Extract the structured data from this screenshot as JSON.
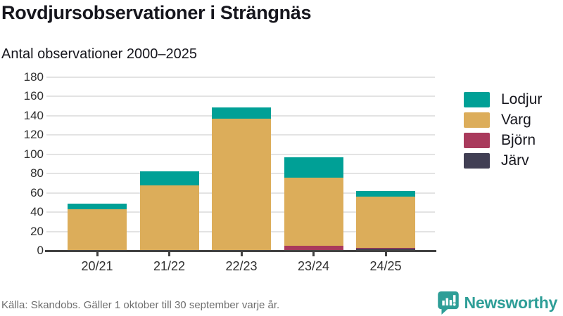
{
  "header": {
    "title": "Rovdjursobservationer i Strängnäs",
    "subtitle": "Antal observationer 2000–2025"
  },
  "chart_data": {
    "type": "bar",
    "stacked": true,
    "title": "Rovdjursobservationer i Strängnäs",
    "subtitle": "Antal observationer 2000–2025",
    "categories": [
      "20/21",
      "21/22",
      "22/23",
      "23/24",
      "24/25"
    ],
    "series": [
      {
        "name": "Järv",
        "color": "#413F54",
        "values": [
          0,
          0,
          0,
          0,
          2
        ]
      },
      {
        "name": "Björn",
        "color": "#A93A5C",
        "values": [
          0,
          1,
          0,
          5,
          1
        ]
      },
      {
        "name": "Varg",
        "color": "#DCAD5A",
        "values": [
          43,
          67,
          137,
          71,
          53
        ]
      },
      {
        "name": "Lodjur",
        "color": "#00A096",
        "values": [
          6,
          14,
          12,
          21,
          6
        ]
      }
    ],
    "totals": [
      49,
      82,
      149,
      97,
      62
    ],
    "stack_order": "bottom-to-top",
    "legend_order": [
      "Lodjur",
      "Varg",
      "Björn",
      "Järv"
    ],
    "legend_position": "right",
    "ylim": [
      0,
      180
    ],
    "ytick_step": 20,
    "grid": true,
    "xlabel": "",
    "ylabel": ""
  },
  "footer": {
    "source": "Källa: Skandobs. Gäller 1 oktober till 30 september varje år."
  },
  "branding": {
    "name": "Newsworthy",
    "color": "#2E9E97"
  }
}
